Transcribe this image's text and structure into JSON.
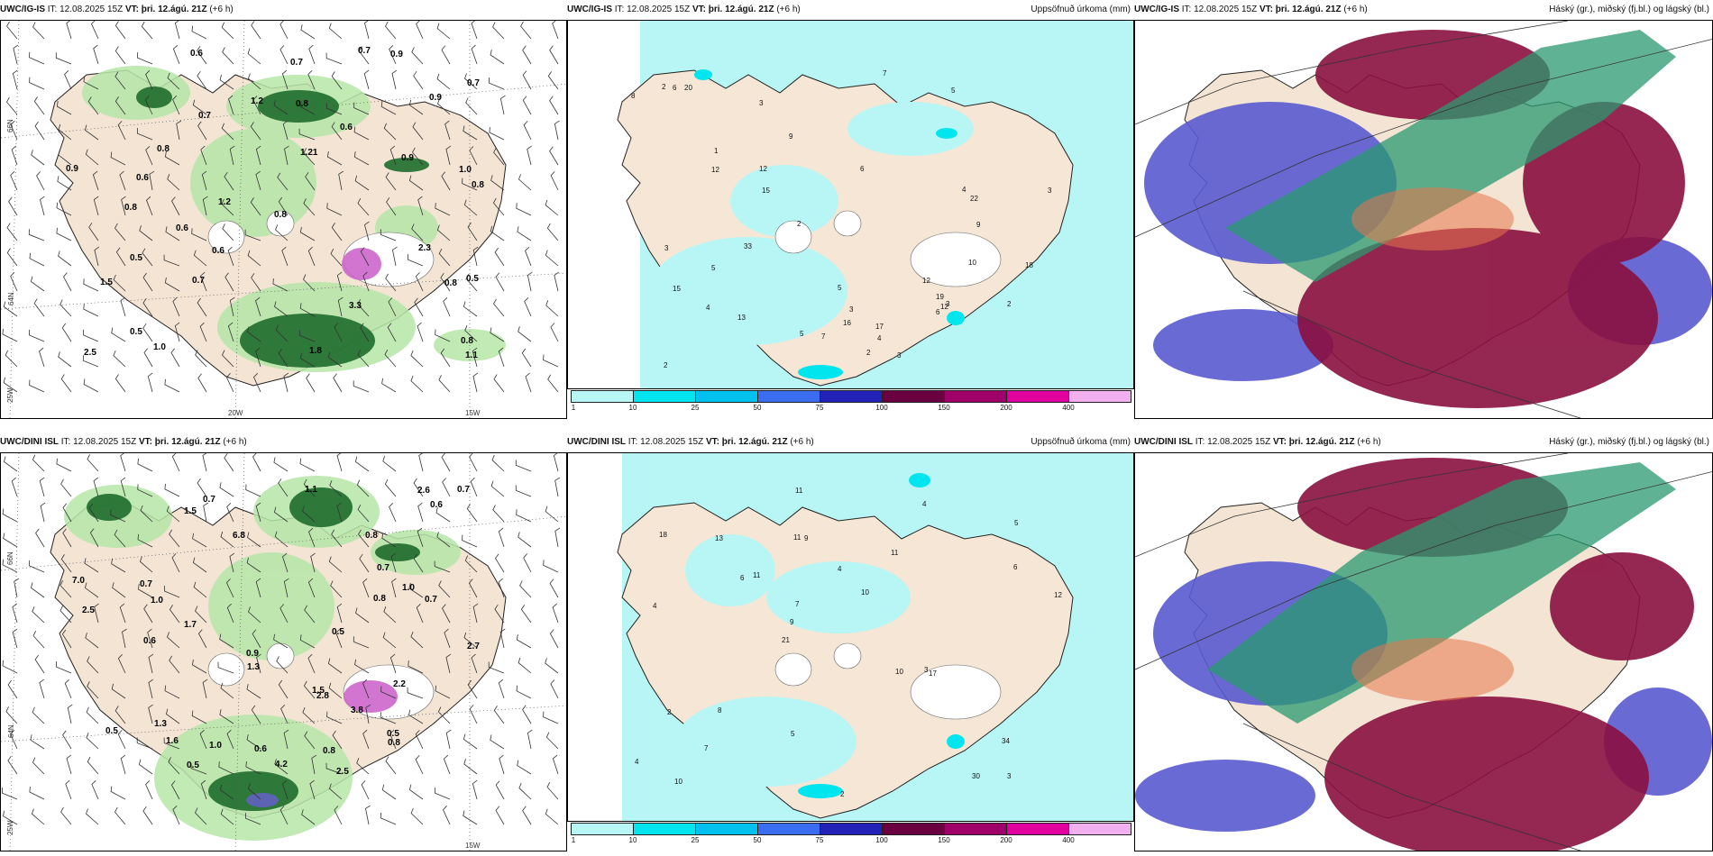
{
  "rows": [
    {
      "model": "UWC/IG-IS",
      "it_label": "IT:",
      "it_value": "12.08.2025 15Z",
      "vt_label": "VT:",
      "vt_value": "þri. 12.ágú. 21Z",
      "lead": "(+6 h)"
    },
    {
      "model": "UWC/DINI ISL",
      "it_label": "IT:",
      "it_value": "12.08.2025 15Z",
      "vt_label": "VT:",
      "vt_value": "þri. 12.ágú. 21Z",
      "lead": "(+6 h)"
    }
  ],
  "precip_title": "Uppsöfnuð úrkoma (mm)",
  "cloud_title": "Háský (gr.), miðský (fj.bl.) og lágský (bl.)",
  "colorbar": {
    "labels": [
      "1",
      "10",
      "25",
      "50",
      "75",
      "100",
      "150",
      "200",
      "400"
    ],
    "colors": [
      "#b8f6f6",
      "#00e5ee",
      "#00c0ee",
      "#3a6cf0",
      "#2222b8",
      "#6a0040",
      "#a0006a",
      "#e000a0",
      "#f2b0f0"
    ]
  },
  "axis_labels": {
    "lat66": "66N",
    "lat64": "64N",
    "lon25": "25W",
    "lon20": "20W",
    "lon15": "15W"
  },
  "top_left_values": [
    "0.7",
    "1.0",
    "0.6",
    "0.8",
    "1.2",
    "0.5",
    "0.6",
    "0.7",
    "0.8",
    "0.9",
    "0.8",
    "2.3",
    "0.9",
    "0.7",
    "1.5",
    "0.8",
    "0.6",
    "0.9",
    "0.6",
    "1.2",
    "0.8",
    "0.8",
    "0.5",
    "0.5",
    "1.21",
    "0.9",
    "2.5",
    "3.3",
    "1.8",
    "0.7",
    "1.0",
    "1.1",
    "0.8",
    "0.7",
    "0.6"
  ],
  "top_mid_values": [
    "5",
    "3",
    "6",
    "8",
    "3",
    "15",
    "16",
    "3",
    "4",
    "1",
    "5",
    "2",
    "7",
    "3",
    "5",
    "4",
    "19",
    "12",
    "18",
    "22",
    "20",
    "9",
    "12",
    "15",
    "17",
    "13",
    "7",
    "2",
    "3",
    "12",
    "2",
    "12",
    "10",
    "5",
    "6",
    "9",
    "6",
    "3",
    "2",
    "33",
    "2",
    "4"
  ],
  "bottom_left_values": [
    "2.5",
    "1.5",
    "1.3",
    "0.7",
    "1.0",
    "0.8",
    "2.7",
    "1.7",
    "1.3",
    "1.6",
    "0.5",
    "7.0",
    "0.9",
    "1.5",
    "0.8",
    "2.6",
    "2.5",
    "0.6",
    "2.2",
    "0.7",
    "0.5",
    "2.8",
    "0.5",
    "0.8",
    "0.5",
    "0.7",
    "0.6",
    "1.0",
    "4.2",
    "6.8",
    "3.8",
    "0.7",
    "0.8",
    "1.0",
    "0.7",
    "0.6",
    "1.1"
  ],
  "bottom_mid_values": [
    "3",
    "4",
    "5",
    "21",
    "11",
    "10",
    "11",
    "4",
    "2",
    "11",
    "4",
    "7",
    "9",
    "10",
    "17",
    "18",
    "11",
    "12",
    "10",
    "6",
    "9",
    "5",
    "7",
    "13",
    "4",
    "8",
    "30",
    "34",
    "3",
    "2",
    "6"
  ]
}
